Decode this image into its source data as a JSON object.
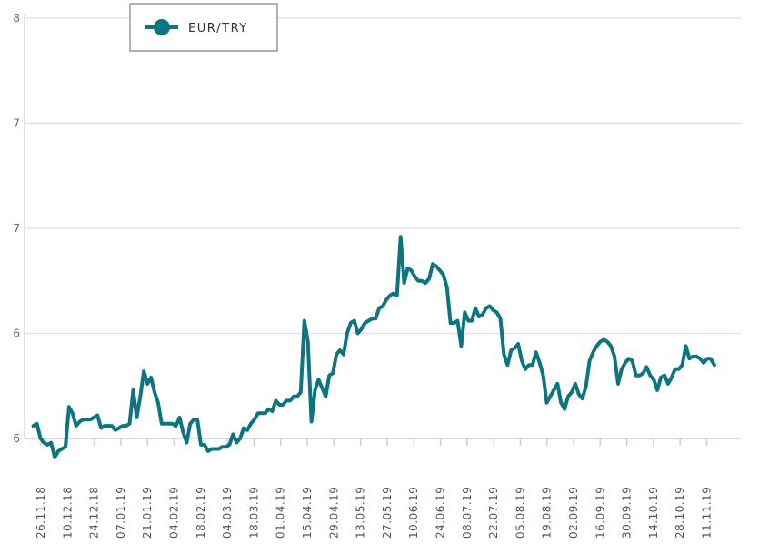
{
  "chart_data": {
    "type": "line",
    "legend": {
      "label": "EUR/TRY",
      "position": "top-left"
    },
    "y_ticks": [
      "8",
      "7",
      "7",
      "6",
      "6"
    ],
    "y_tick_values": [
      8,
      7.5,
      7,
      6.5,
      6
    ],
    "ylim": [
      6,
      8
    ],
    "grid": true,
    "x_labels": [
      "26.11.18",
      "10.12.18",
      "24.12.18",
      "07.01.19",
      "21.01.19",
      "04.02.19",
      "18.02.19",
      "04.03.19",
      "18.03.19",
      "01.04.19",
      "15.04.19",
      "29.04.19",
      "13.05.19",
      "27.05.19",
      "10.06.19",
      "24.06.19",
      "08.07.19",
      "22.07.19",
      "05.08.19",
      "19.08.19",
      "02.09.19",
      "16.09.19",
      "30.09.19",
      "14.10.19",
      "28.10.19",
      "11.11.19"
    ],
    "series": [
      {
        "name": "EUR/TRY",
        "color": "#0d7480",
        "start_date": "2018-11-22",
        "values": [
          6.06,
          6.07,
          6.0,
          5.98,
          5.97,
          5.98,
          5.91,
          5.94,
          5.95,
          5.96,
          6.15,
          6.12,
          6.06,
          6.08,
          6.09,
          6.09,
          6.09,
          6.1,
          6.11,
          6.05,
          6.06,
          6.06,
          6.06,
          6.04,
          6.05,
          6.06,
          6.06,
          6.07,
          6.23,
          6.1,
          6.2,
          6.32,
          6.26,
          6.29,
          6.22,
          6.17,
          6.07,
          6.07,
          6.07,
          6.07,
          6.06,
          6.1,
          6.03,
          5.98,
          6.07,
          6.09,
          6.09,
          5.97,
          5.97,
          5.94,
          5.95,
          5.95,
          5.95,
          5.96,
          5.96,
          5.97,
          6.02,
          5.98,
          6.0,
          6.05,
          6.04,
          6.07,
          6.09,
          6.12,
          6.12,
          6.12,
          6.14,
          6.13,
          6.18,
          6.16,
          6.16,
          6.18,
          6.18,
          6.2,
          6.2,
          6.22,
          6.56,
          6.46,
          6.08,
          6.23,
          6.28,
          6.24,
          6.2,
          6.3,
          6.31,
          6.4,
          6.42,
          6.4,
          6.5,
          6.55,
          6.56,
          6.5,
          6.52,
          6.55,
          6.56,
          6.57,
          6.57,
          6.62,
          6.63,
          6.66,
          6.68,
          6.69,
          6.68,
          6.96,
          6.74,
          6.81,
          6.8,
          6.77,
          6.75,
          6.75,
          6.74,
          6.76,
          6.83,
          6.82,
          6.8,
          6.78,
          6.72,
          6.55,
          6.55,
          6.56,
          6.44,
          6.6,
          6.56,
          6.56,
          6.62,
          6.58,
          6.59,
          6.62,
          6.63,
          6.61,
          6.6,
          6.57,
          6.4,
          6.35,
          6.42,
          6.43,
          6.45,
          6.37,
          6.33,
          6.35,
          6.35,
          6.41,
          6.36,
          6.3,
          6.17,
          6.2,
          6.23,
          6.26,
          6.17,
          6.14,
          6.2,
          6.22,
          6.26,
          6.21,
          6.19,
          6.25,
          6.37,
          6.41,
          6.44,
          6.46,
          6.47,
          6.46,
          6.44,
          6.39,
          6.26,
          6.33,
          6.36,
          6.38,
          6.37,
          6.3,
          6.3,
          6.31,
          6.34,
          6.3,
          6.28,
          6.23,
          6.29,
          6.3,
          6.26,
          6.29,
          6.33,
          6.33,
          6.35,
          6.44,
          6.38,
          6.39,
          6.39,
          6.38,
          6.36,
          6.38,
          6.38,
          6.35
        ]
      }
    ]
  }
}
